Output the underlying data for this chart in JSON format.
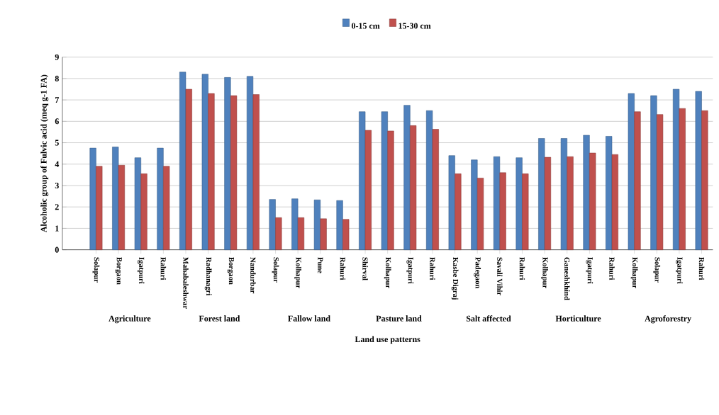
{
  "chart_data": {
    "type": "bar",
    "xlabel": "Land use patterns",
    "ylabel": "Alcoholic group of Fulvic acid (meq g-1 FA)",
    "categories": [
      "Solapur",
      "Borgaon",
      "Igatpuri",
      "Rahuri",
      "Mahabaleshwar",
      "Radhanagri",
      "Borgaon",
      "Nandurbar",
      "Solapur",
      "Kolhapur",
      "Pune",
      "Rahuri",
      "Shirval",
      "Kolhapur",
      "Igatpuri",
      "Rahuri",
      "Kasbe Digraj",
      "Padegaon",
      "Savali Vihir",
      "Rahuri",
      "Kolhapur",
      "Ganeshkhind",
      "Igatpuri",
      "Rahuri",
      "Kolhapur",
      "Solapur",
      "Igatpuri",
      "Rahuri"
    ],
    "series": [
      {
        "name": "0-15 cm",
        "color": "#4f81bd",
        "values": [
          4.75,
          4.8,
          4.3,
          4.75,
          8.3,
          8.2,
          8.05,
          8.1,
          2.35,
          2.38,
          2.33,
          2.3,
          6.45,
          6.45,
          6.75,
          6.5,
          4.4,
          4.2,
          4.35,
          4.3,
          5.2,
          5.2,
          5.35,
          5.3,
          7.3,
          7.2,
          7.5,
          7.4
        ]
      },
      {
        "name": "15-30 cm",
        "color": "#c0504d",
        "values": [
          3.9,
          3.95,
          3.55,
          3.9,
          7.5,
          7.3,
          7.2,
          7.25,
          1.5,
          1.5,
          1.45,
          1.42,
          5.58,
          5.55,
          5.8,
          5.63,
          3.55,
          3.35,
          3.6,
          3.55,
          4.32,
          4.35,
          4.52,
          4.45,
          6.45,
          6.32,
          6.6,
          6.5
        ]
      }
    ],
    "annotations": [
      "Agriculture",
      "Forest land",
      "Fallow land",
      "Pasture land",
      "Salt affected",
      "Horticulture",
      "Agroforestry"
    ],
    "ylim": [
      0,
      9
    ],
    "yticks": [
      0,
      1,
      2,
      3,
      4,
      5,
      6,
      7,
      8,
      9
    ],
    "grid": "y",
    "legend": "top"
  }
}
